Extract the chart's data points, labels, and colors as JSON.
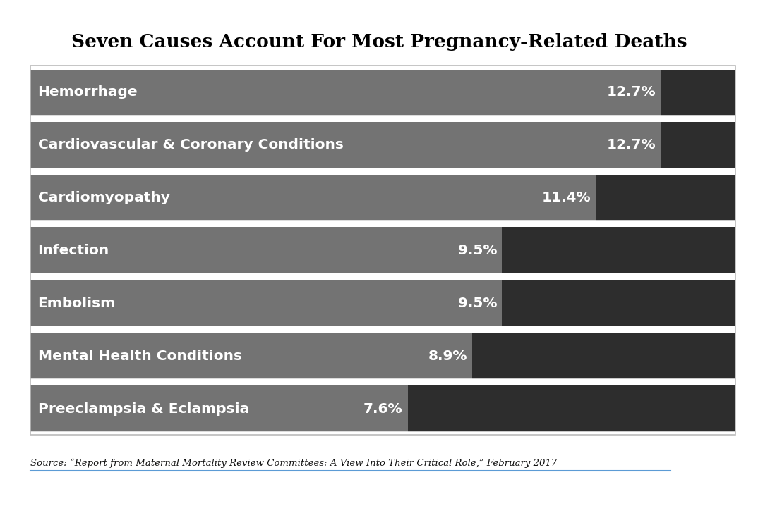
{
  "title": "Seven Causes Account For Most Pregnancy-Related Deaths",
  "categories": [
    "Hemorrhage",
    "Cardiovascular & Coronary Conditions",
    "Cardiomyopathy",
    "Infection",
    "Embolism",
    "Mental Health Conditions",
    "Preeclampsia & Eclampsia"
  ],
  "values": [
    12.7,
    12.7,
    11.4,
    9.5,
    9.5,
    8.9,
    7.6
  ],
  "labels": [
    "12.7%",
    "12.7%",
    "11.4%",
    "9.5%",
    "9.5%",
    "8.9%",
    "7.6%"
  ],
  "bar_color_light": "#737373",
  "bar_color_dark": "#2d2d2d",
  "bg_color": "#ffffff",
  "divider_color": "#aaaaaa",
  "title_fontsize": 19,
  "label_fontsize": 14.5,
  "value_fontsize": 14.5,
  "source_text": "Source: “Report from Maternal Mortality Review Committees: A View Into Their Critical Role,” February 2017",
  "source_underline_color": "#5b9bd5",
  "max_val": 12.7
}
